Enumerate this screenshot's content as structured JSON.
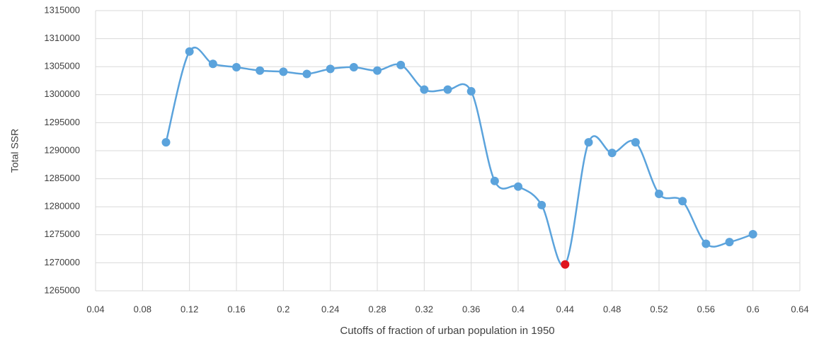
{
  "chart_data": {
    "type": "line",
    "xlabel": "Cutoffs of fraction of urban population in 1950",
    "ylabel": "Total SSR",
    "x": [
      0.1,
      0.12,
      0.14,
      0.16,
      0.18,
      0.2,
      0.22,
      0.24,
      0.26,
      0.28,
      0.3,
      0.32,
      0.34,
      0.36,
      0.38,
      0.4,
      0.42,
      0.44,
      0.46,
      0.48,
      0.5,
      0.52,
      0.54,
      0.56,
      0.58,
      0.6
    ],
    "series": [
      {
        "color": "#5ba3dc",
        "values": [
          1291500,
          1307700,
          1305500,
          1304900,
          1304300,
          1304100,
          1303700,
          1304600,
          1304900,
          1304300,
          1305300,
          1300900,
          1300900,
          1300600,
          1284600,
          1283600,
          1280300,
          1269700,
          1291500,
          1289600,
          1291500,
          1282300,
          1281000,
          1273400,
          1273700,
          1275100
        ],
        "marker_colors": [
          "#5ba3dc",
          "#5ba3dc",
          "#5ba3dc",
          "#5ba3dc",
          "#5ba3dc",
          "#5ba3dc",
          "#5ba3dc",
          "#5ba3dc",
          "#5ba3dc",
          "#5ba3dc",
          "#5ba3dc",
          "#5ba3dc",
          "#5ba3dc",
          "#5ba3dc",
          "#5ba3dc",
          "#5ba3dc",
          "#5ba3dc",
          "#e0141e",
          "#5ba3dc",
          "#5ba3dc",
          "#5ba3dc",
          "#5ba3dc",
          "#5ba3dc",
          "#5ba3dc",
          "#5ba3dc",
          "#5ba3dc"
        ]
      }
    ],
    "xlim": [
      0.04,
      0.64
    ],
    "xticks": [
      0.04,
      0.08,
      0.12,
      0.16,
      0.2,
      0.24,
      0.28,
      0.32,
      0.36,
      0.4,
      0.44,
      0.48,
      0.52,
      0.56,
      0.6,
      0.64
    ],
    "ylim": [
      1265000,
      1315000
    ],
    "yticks": [
      1265000,
      1270000,
      1275000,
      1280000,
      1285000,
      1290000,
      1295000,
      1300000,
      1305000,
      1310000,
      1315000
    ],
    "grid": true,
    "smooth": true
  }
}
